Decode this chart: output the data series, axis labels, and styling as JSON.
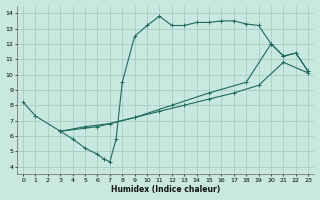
{
  "xlabel": "Humidex (Indice chaleur)",
  "xlim": [
    -0.5,
    23.5
  ],
  "ylim": [
    3.5,
    14.5
  ],
  "xticks": [
    0,
    1,
    2,
    3,
    4,
    5,
    6,
    7,
    8,
    9,
    10,
    11,
    12,
    13,
    14,
    15,
    16,
    17,
    18,
    19,
    20,
    21,
    22,
    23
  ],
  "yticks": [
    4,
    5,
    6,
    7,
    8,
    9,
    10,
    11,
    12,
    13,
    14
  ],
  "bg_color": "#c8e8e0",
  "line_color": "#1e6b5e",
  "grid_color": "#a0c8c0",
  "curve1_x": [
    0,
    1,
    3,
    4,
    5,
    6,
    6.5,
    7,
    7.5,
    8,
    9,
    10,
    11,
    12,
    13,
    14,
    15,
    16,
    17,
    18,
    19,
    20,
    21,
    22,
    23
  ],
  "curve1_y": [
    8.2,
    7.3,
    6.3,
    5.8,
    5.2,
    4.8,
    4.5,
    4.3,
    5.8,
    9.5,
    12.5,
    13.2,
    13.8,
    13.2,
    13.2,
    13.4,
    13.4,
    13.5,
    13.5,
    13.3,
    13.2,
    12.0,
    11.2,
    11.4,
    10.2
  ],
  "curve2_x": [
    3,
    5,
    7,
    9,
    11,
    13,
    15,
    17,
    19,
    21,
    23
  ],
  "curve2_y": [
    6.3,
    6.6,
    6.8,
    7.2,
    7.6,
    8.0,
    8.4,
    8.8,
    9.3,
    10.8,
    10.1
  ],
  "curve3_x": [
    3,
    6,
    9,
    12,
    15,
    18,
    20,
    21,
    22,
    23
  ],
  "curve3_y": [
    6.3,
    6.6,
    7.2,
    8.0,
    8.8,
    9.5,
    12.0,
    11.2,
    11.4,
    10.2
  ]
}
